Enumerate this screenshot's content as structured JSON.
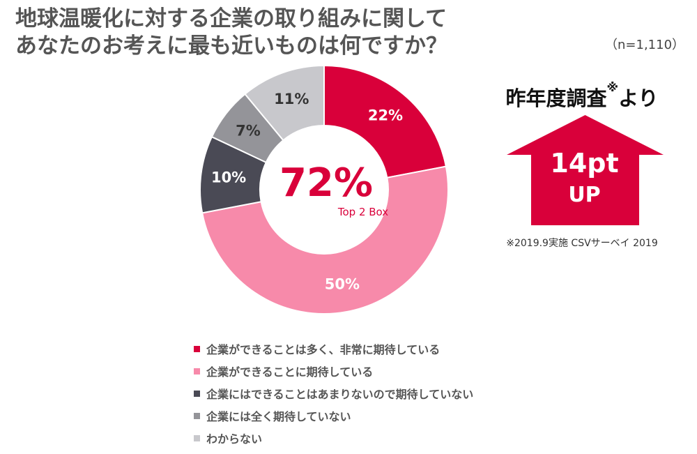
{
  "title": {
    "line1": "地球温暖化に対する企業の取り組みに関して",
    "line2": "あなたのお考えに最も近いものは何ですか？"
  },
  "sample_size": "（n=1,110）",
  "center": {
    "value": "72%",
    "label": "Top 2 Box",
    "color": "#d9003a"
  },
  "callout": {
    "heading": "昨年度調査",
    "heading_mark": "※",
    "heading_suffix": "より",
    "value": "14pt",
    "unit": "UP",
    "arrow_color": "#d9003a",
    "footnote": "※2019.9実施 CSVサーベイ 2019"
  },
  "chart_data": {
    "type": "pie",
    "categories": [
      "企業ができることは多く、非常に期待している",
      "企業ができることに期待している",
      "企業にはできることはあまりないので期待していない",
      "企業には全く期待していない",
      "わからない"
    ],
    "values": [
      22,
      50,
      10,
      7,
      11
    ],
    "labels": [
      "22%",
      "50%",
      "10%",
      "7%",
      "11%"
    ],
    "colors": [
      "#d9003a",
      "#f78aaa",
      "#4a4a55",
      "#949499",
      "#c8c8cc"
    ],
    "label_colors": [
      "#ffffff",
      "#ffffff",
      "#ffffff",
      "#333333",
      "#333333"
    ],
    "legend_position": "bottom",
    "donut": true
  }
}
